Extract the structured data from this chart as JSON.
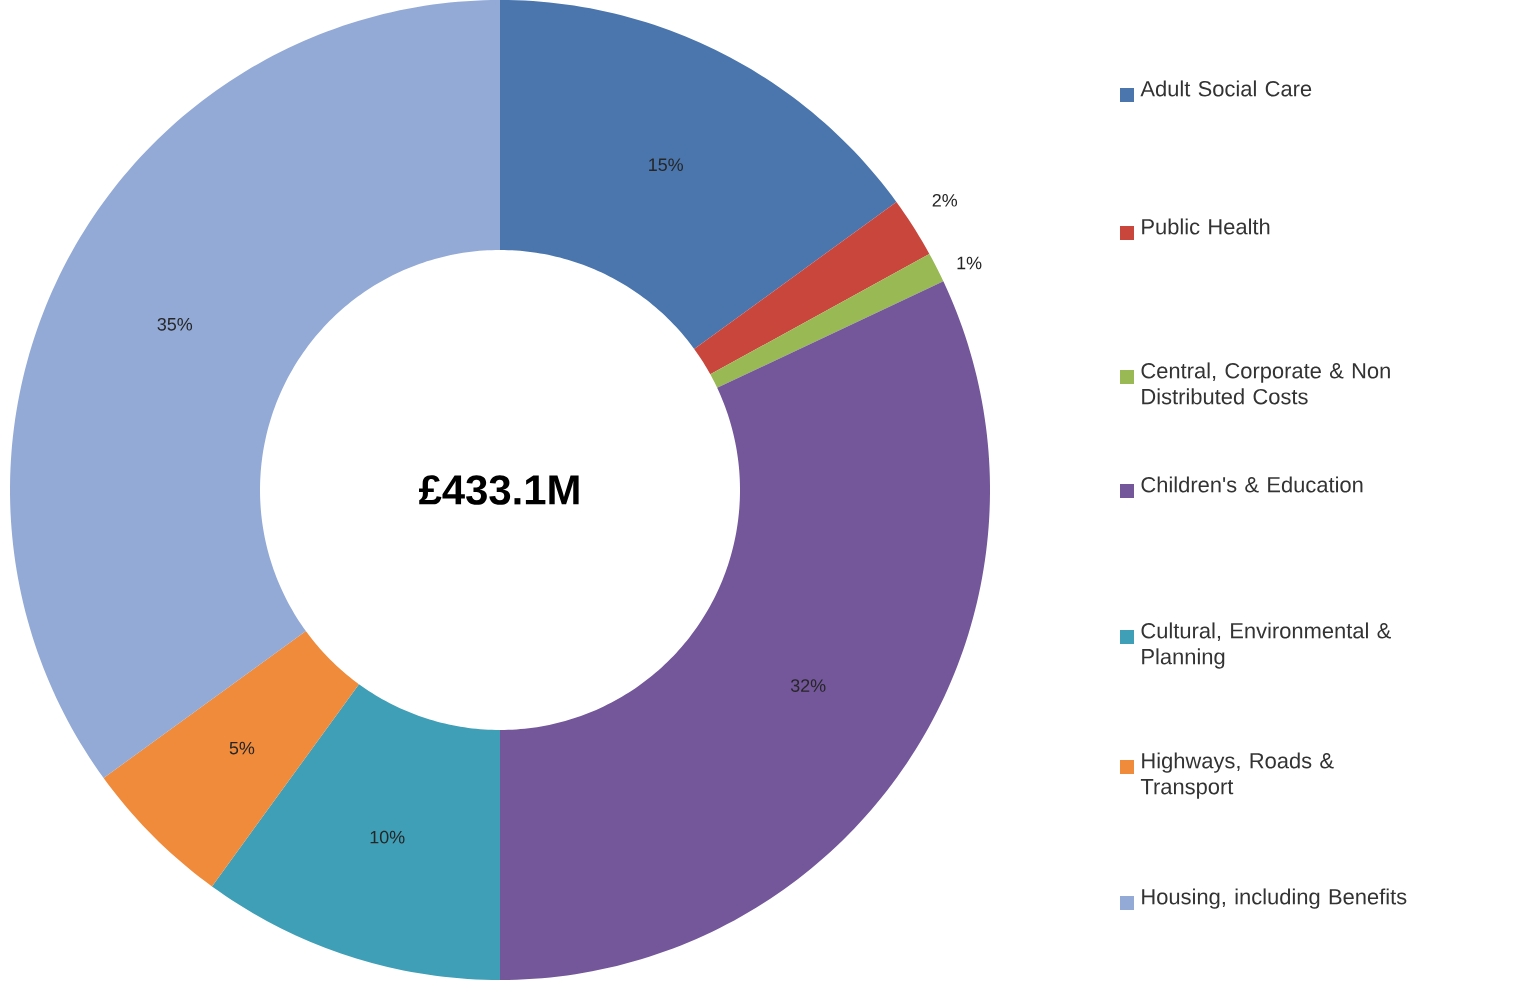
{
  "chart_data": {
    "type": "donut",
    "categories": [
      "Adult Social Care",
      "Public Health",
      "Central, Corporate & Non Distributed Costs",
      "Children's & Education",
      "Cultural, Environmental & Planning",
      "Highways, Roads & Transport",
      "Housing, including Benefits"
    ],
    "values": [
      15,
      2,
      1,
      32,
      10,
      5,
      35
    ],
    "colors": [
      "#4a76ad",
      "#c9463d",
      "#98b954",
      "#74579a",
      "#3f9fb7",
      "#ef8b3b",
      "#93aad6"
    ],
    "value_labels": [
      "15%",
      "2%",
      "1%",
      "32%",
      "10%",
      "5%",
      "35%"
    ],
    "annotations": [
      "£433.1M"
    ],
    "legend": "right"
  }
}
